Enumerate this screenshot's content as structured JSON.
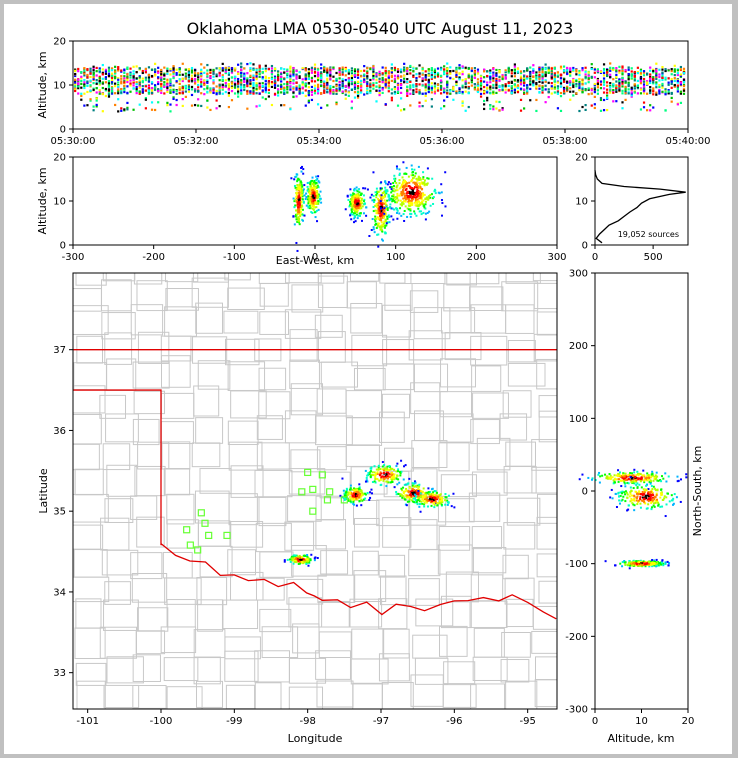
{
  "title": "Oklahoma LMA 0530-0540 UTC August 11, 2023",
  "colors": {
    "background": "#ffffff",
    "frame": "#c0c0c0",
    "county_lines": "#c8c8c8",
    "state_border": "#e00000",
    "stations": "#66ff33",
    "histogram_line": "#000000",
    "density_scale": [
      "#0000ff",
      "#00b4ff",
      "#00ffc8",
      "#00ff00",
      "#b4ff00",
      "#ffff00",
      "#ff8000",
      "#ff0000",
      "#000000",
      "#ffffff"
    ]
  },
  "chart_data": [
    {
      "type": "scatter",
      "panel": "altitude-time",
      "xlabel": "",
      "ylabel": "Altitude, km",
      "xlim": [
        "05:30:00",
        "05:40:00"
      ],
      "ylim": [
        0,
        20
      ],
      "xticks": [
        "05:30:00",
        "05:32:00",
        "05:34:00",
        "05:36:00",
        "05:38:00",
        "05:40:00"
      ],
      "yticks": [
        "0",
        "10",
        "20"
      ],
      "note_color_by": "time",
      "altitude_band_km": [
        4,
        15
      ],
      "main_band_km": [
        8,
        14
      ]
    },
    {
      "type": "scatter",
      "panel": "altitude-eastwest",
      "xlabel": "East-West, km",
      "ylabel": "Altitude, km",
      "xlim": [
        -300,
        300
      ],
      "ylim": [
        0,
        20
      ],
      "xticks": [
        "-300",
        "-200",
        "-100",
        "0",
        "100",
        "200",
        "300"
      ],
      "yticks": [
        "0",
        "10",
        "20"
      ],
      "clusters": [
        {
          "x": -20,
          "z": 10,
          "spread_x": 3,
          "spread_z": 3
        },
        {
          "x": -2,
          "z": 11,
          "spread_x": 4,
          "spread_z": 2
        },
        {
          "x": 52,
          "z": 9.5,
          "spread_x": 5,
          "spread_z": 1.5
        },
        {
          "x": 82,
          "z": 8,
          "spread_x": 5,
          "spread_z": 3
        },
        {
          "x": 120,
          "z": 12,
          "spread_x": 15,
          "spread_z": 2.5
        }
      ]
    },
    {
      "type": "line",
      "panel": "altitude-histogram",
      "xlim": [
        0,
        800
      ],
      "ylim": [
        0,
        20
      ],
      "xticks": [
        "0",
        "500"
      ],
      "yticks": [
        "0",
        "10",
        "20"
      ],
      "annotation": "19,052 sources",
      "profile": [
        {
          "count": 60,
          "alt": 0.5
        },
        {
          "count": 10,
          "alt": 1.5
        },
        {
          "count": 40,
          "alt": 2.5
        },
        {
          "count": 80,
          "alt": 3.5
        },
        {
          "count": 120,
          "alt": 4.5
        },
        {
          "count": 200,
          "alt": 5.5
        },
        {
          "count": 250,
          "alt": 6.5
        },
        {
          "count": 300,
          "alt": 7.5
        },
        {
          "count": 360,
          "alt": 8.5
        },
        {
          "count": 400,
          "alt": 9.5
        },
        {
          "count": 470,
          "alt": 10.5
        },
        {
          "count": 640,
          "alt": 11.5
        },
        {
          "count": 780,
          "alt": 12.0
        },
        {
          "count": 560,
          "alt": 12.7
        },
        {
          "count": 250,
          "alt": 13.3
        },
        {
          "count": 60,
          "alt": 14.0
        },
        {
          "count": 20,
          "alt": 15.0
        },
        {
          "count": 5,
          "alt": 16.0
        },
        {
          "count": 0,
          "alt": 17.0
        }
      ]
    },
    {
      "type": "scatter",
      "panel": "plan-view-map",
      "xlabel": "Longitude",
      "ylabel": "Latitude",
      "xlim": [
        -101.2,
        -94.6
      ],
      "ylim": [
        32.55,
        37.95
      ],
      "xticks": [
        "-101",
        "-100",
        "-99",
        "-98",
        "-97",
        "-96",
        "-95"
      ],
      "yticks": [
        "33",
        "34",
        "35",
        "36",
        "37"
      ],
      "source_clusters": [
        {
          "lon": -96.95,
          "lat": 35.45,
          "spread_lon": 0.12,
          "spread_lat": 0.06
        },
        {
          "lon": -96.55,
          "lat": 35.22,
          "spread_lon": 0.12,
          "spread_lat": 0.06
        },
        {
          "lon": -96.3,
          "lat": 35.15,
          "spread_lon": 0.12,
          "spread_lat": 0.05
        },
        {
          "lon": -97.35,
          "lat": 35.2,
          "spread_lon": 0.08,
          "spread_lat": 0.05
        },
        {
          "lon": -98.1,
          "lat": 34.4,
          "spread_lon": 0.08,
          "spread_lat": 0.03
        }
      ],
      "stations": [
        {
          "lon": -99.45,
          "lat": 34.98
        },
        {
          "lon": -99.65,
          "lat": 34.77
        },
        {
          "lon": -99.4,
          "lat": 34.85
        },
        {
          "lon": -99.35,
          "lat": 34.7
        },
        {
          "lon": -99.6,
          "lat": 34.58
        },
        {
          "lon": -99.5,
          "lat": 34.52
        },
        {
          "lon": -99.1,
          "lat": 34.7
        },
        {
          "lon": -98.0,
          "lat": 35.48
        },
        {
          "lon": -98.08,
          "lat": 35.24
        },
        {
          "lon": -97.93,
          "lat": 35.27
        },
        {
          "lon": -97.8,
          "lat": 35.45
        },
        {
          "lon": -97.7,
          "lat": 35.24
        },
        {
          "lon": -97.73,
          "lat": 35.14
        },
        {
          "lon": -97.5,
          "lat": 35.14
        },
        {
          "lon": -97.93,
          "lat": 35.0
        }
      ]
    },
    {
      "type": "scatter",
      "panel": "northsouth-altitude",
      "xlabel": "Altitude, km",
      "ylabel": "North-South, km",
      "xlim": [
        0,
        20
      ],
      "ylim": [
        -300,
        300
      ],
      "xticks": [
        "0",
        "10",
        "20"
      ],
      "yticks": [
        "-300",
        "-200",
        "-100",
        "0",
        "100",
        "200",
        "300"
      ],
      "clusters": [
        {
          "z": 8,
          "y": 18,
          "spread_z": 4,
          "spread_y": 4
        },
        {
          "z": 11,
          "y": -8,
          "spread_z": 3,
          "spread_y": 8
        },
        {
          "z": 10,
          "y": -100,
          "spread_z": 2.5,
          "spread_y": 2
        }
      ]
    }
  ]
}
